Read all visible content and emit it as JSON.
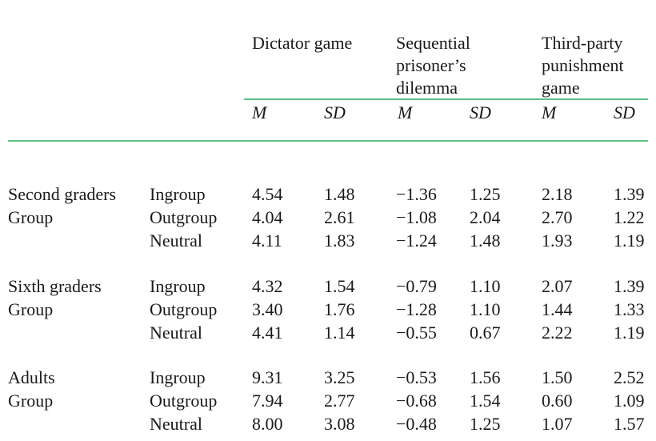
{
  "columns": {
    "groups": [
      {
        "id": "dictator",
        "lines": [
          "Dictator game"
        ]
      },
      {
        "id": "spd",
        "lines": [
          "Sequential",
          "prisoner’s",
          "dilemma"
        ]
      },
      {
        "id": "tpp",
        "lines": [
          "Third-party",
          "punishment",
          "game"
        ]
      }
    ],
    "sub": [
      "M",
      "SD",
      "M",
      "SD",
      "M",
      "SD"
    ]
  },
  "sections": [
    {
      "label": [
        "Second graders",
        "Group"
      ],
      "rows": [
        {
          "group": "Ingroup",
          "values": [
            "4.54",
            "1.48",
            "−1.36",
            "1.25",
            "2.18",
            "1.39"
          ]
        },
        {
          "group": "Outgroup",
          "values": [
            "4.04",
            "2.61",
            "−1.08",
            "2.04",
            "2.70",
            "1.22"
          ]
        },
        {
          "group": "Neutral",
          "values": [
            "4.11",
            "1.83",
            "−1.24",
            "1.48",
            "1.93",
            "1.19"
          ]
        }
      ]
    },
    {
      "label": [
        "Sixth graders",
        "Group"
      ],
      "rows": [
        {
          "group": "Ingroup",
          "values": [
            "4.32",
            "1.54",
            "−0.79",
            "1.10",
            "2.07",
            "1.39"
          ]
        },
        {
          "group": "Outgroup",
          "values": [
            "3.40",
            "1.76",
            "−1.28",
            "1.10",
            "1.44",
            "1.33"
          ]
        },
        {
          "group": "Neutral",
          "values": [
            "4.41",
            "1.14",
            "−0.55",
            "0.67",
            "2.22",
            "1.19"
          ]
        }
      ]
    },
    {
      "label": [
        "Adults",
        "Group"
      ],
      "rows": [
        {
          "group": "Ingroup",
          "values": [
            "9.31",
            "3.25",
            "−0.53",
            "1.56",
            "1.50",
            "2.52"
          ]
        },
        {
          "group": "Outgroup",
          "values": [
            "7.94",
            "2.77",
            "−0.68",
            "1.54",
            "0.60",
            "1.09"
          ]
        },
        {
          "group": "Neutral",
          "values": [
            "8.00",
            "3.08",
            "−0.48",
            "1.25",
            "1.07",
            "1.57"
          ]
        }
      ]
    }
  ],
  "colors": {
    "rule": "#5cc08a",
    "text": "#1a1a1a",
    "background": "#ffffff"
  }
}
